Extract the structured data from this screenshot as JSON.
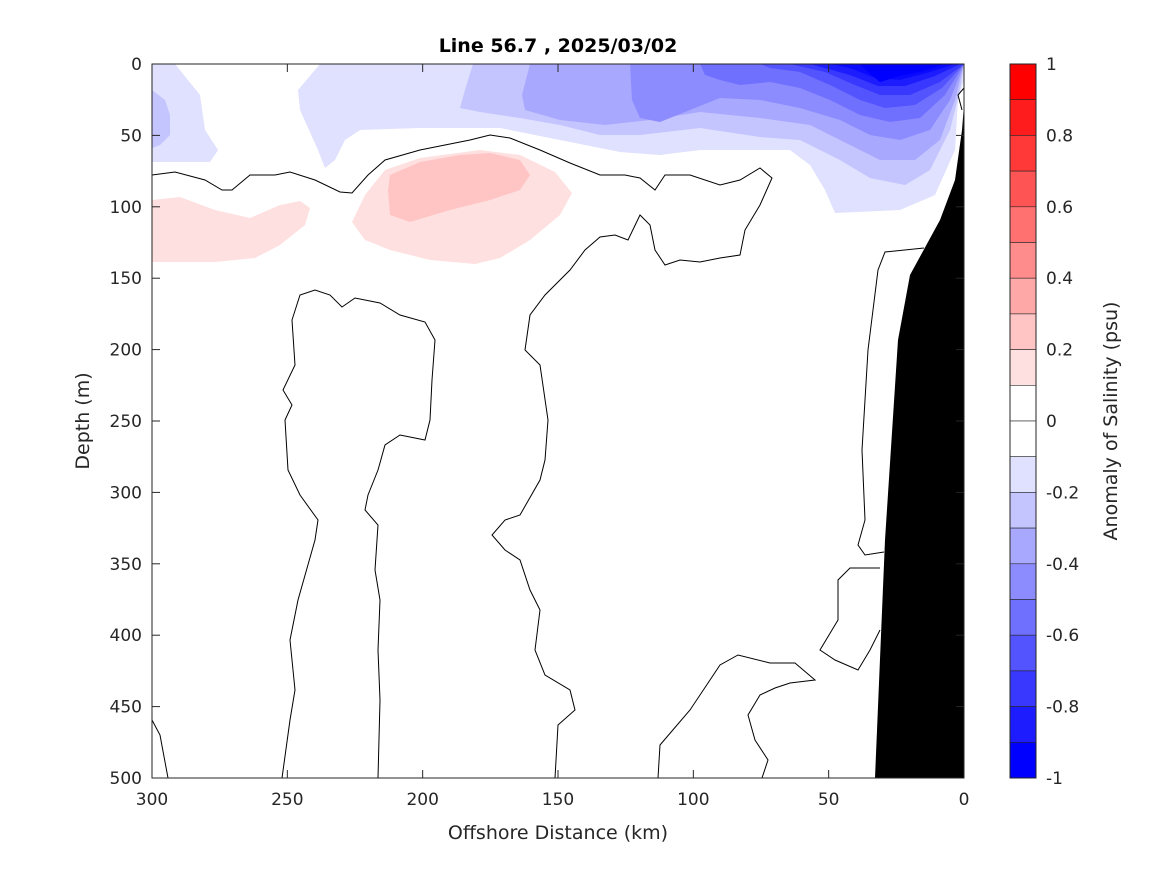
{
  "chart_data": {
    "type": "heatmap",
    "subtype": "filled-contour",
    "title": "Line 56.7 , 2025/03/02",
    "xlabel": "Offshore Distance (km)",
    "ylabel": "Depth (m)",
    "xlim": [
      300,
      0
    ],
    "ylim": [
      0,
      500
    ],
    "x_reversed": true,
    "y_reversed": true,
    "xticks": [
      300,
      250,
      200,
      150,
      100,
      50,
      0
    ],
    "yticks": [
      0,
      50,
      100,
      150,
      200,
      250,
      300,
      350,
      400,
      450,
      500
    ],
    "grid": false,
    "colorbar": {
      "label": "Anomaly of Salinity (psu)",
      "range": [
        -1,
        1
      ],
      "level_step": 0.1,
      "ticks": [
        "1",
        "0.8",
        "0.6",
        "0.4",
        "0.2",
        "0",
        "-0.2",
        "-0.4",
        "-0.6",
        "-0.8",
        "-1"
      ],
      "colors_top_to_bottom": [
        "#ff0000",
        "#ff1c1c",
        "#ff3838",
        "#ff5454",
        "#ff7070",
        "#ff8c8c",
        "#ffa8a8",
        "#ffc4c4",
        "#ffe0e0",
        "#ffffff",
        "#ffffff",
        "#e0e0ff",
        "#c4c4ff",
        "#a8a8ff",
        "#8c8cff",
        "#7070ff",
        "#5454ff",
        "#3838ff",
        "#1c1cff",
        "#0000ff"
      ]
    },
    "features": {
      "surface_fresh_anomaly_min": -1.0,
      "subsurface_salty_anomaly_max": 0.2,
      "zero_contour_color": "#000000",
      "bathymetry_color": "#000000"
    }
  }
}
